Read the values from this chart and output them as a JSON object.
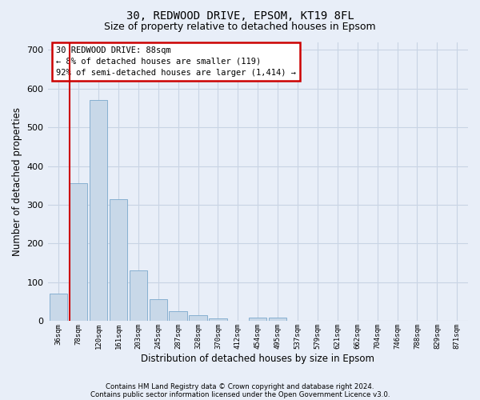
{
  "title1": "30, REDWOOD DRIVE, EPSOM, KT19 8FL",
  "title2": "Size of property relative to detached houses in Epsom",
  "xlabel": "Distribution of detached houses by size in Epsom",
  "ylabel": "Number of detached properties",
  "footer1": "Contains HM Land Registry data © Crown copyright and database right 2024.",
  "footer2": "Contains public sector information licensed under the Open Government Licence v3.0.",
  "bar_color": "#c8d8e8",
  "bar_edge_color": "#7aa8cc",
  "grid_color": "#c8d4e4",
  "bg_color": "#e8eef8",
  "categories": [
    "36sqm",
    "78sqm",
    "120sqm",
    "161sqm",
    "203sqm",
    "245sqm",
    "287sqm",
    "328sqm",
    "370sqm",
    "412sqm",
    "454sqm",
    "495sqm",
    "537sqm",
    "579sqm",
    "621sqm",
    "662sqm",
    "704sqm",
    "746sqm",
    "788sqm",
    "829sqm",
    "871sqm"
  ],
  "values": [
    70,
    355,
    570,
    315,
    130,
    57,
    25,
    15,
    7,
    0,
    10,
    10,
    0,
    0,
    0,
    0,
    0,
    0,
    0,
    0,
    0
  ],
  "annotation_text": "30 REDWOOD DRIVE: 88sqm\n← 8% of detached houses are smaller (119)\n92% of semi-detached houses are larger (1,414) →",
  "annotation_box_color": "#ffffff",
  "annotation_box_edge": "#cc0000",
  "ylim": [
    0,
    720
  ],
  "yticks": [
    0,
    100,
    200,
    300,
    400,
    500,
    600,
    700
  ],
  "property_line_color": "#cc0000",
  "property_line_x": 0.575,
  "title1_fontsize": 10,
  "title2_fontsize": 9
}
